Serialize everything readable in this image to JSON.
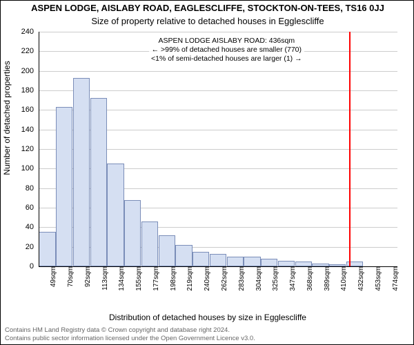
{
  "title_main": "ASPEN LODGE, AISLABY ROAD, EAGLESCLIFFE, STOCKTON-ON-TEES, TS16 0JJ",
  "title_sub": "Size of property relative to detached houses in Egglescliffe",
  "y_axis_title": "Number of detached properties",
  "x_axis_title": "Distribution of detached houses by size in Egglescliffe",
  "footer_line1": "Contains HM Land Registry data © Crown copyright and database right 2024.",
  "footer_line2": "Contains public sector information licensed under the Open Government Licence v3.0.",
  "annotation": {
    "line1": "ASPEN LODGE AISLABY ROAD: 436sqm",
    "line2": "← >99% of detached houses are smaller (770)",
    "line3": "<1% of semi-detached houses are larger (1) →"
  },
  "chart": {
    "type": "histogram",
    "ylim": [
      0,
      240
    ],
    "ytick_step": 20,
    "y_tick_color": "#000000",
    "grid_color": "#cccccc",
    "background_color": "#ffffff",
    "bar_fill": "#d5dff2",
    "bar_stroke": "#7a8db8",
    "marker_color": "#ff0000",
    "marker_x_value": 436,
    "x_start": 49,
    "x_step": 21.3,
    "x_labels": [
      "49sqm",
      "70sqm",
      "92sqm",
      "113sqm",
      "134sqm",
      "155sqm",
      "177sqm",
      "198sqm",
      "219sqm",
      "240sqm",
      "262sqm",
      "283sqm",
      "304sqm",
      "325sqm",
      "347sqm",
      "368sqm",
      "389sqm",
      "410sqm",
      "432sqm",
      "453sqm",
      "474sqm"
    ],
    "values": [
      35,
      163,
      193,
      172,
      105,
      68,
      46,
      32,
      22,
      15,
      13,
      10,
      10,
      8,
      6,
      5,
      3,
      2,
      5,
      0,
      0
    ],
    "title_fontsize": 13,
    "subtitle_fontsize": 13,
    "axis_label_fontsize": 12,
    "tick_fontsize": 10,
    "annotation_fontsize": 10.5,
    "footer_fontsize": 9.5,
    "footer_color": "#666666"
  }
}
